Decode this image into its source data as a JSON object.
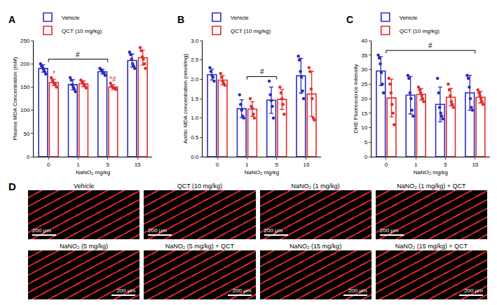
{
  "chart_data": [
    {
      "type": "bar",
      "panel": "A",
      "x_label": "NaNO₂ mg/kg",
      "y_label": "Plasma MDA Concentration (mM)",
      "categories": [
        "0",
        "1",
        "5",
        "15"
      ],
      "series": [
        {
          "name": "Vehicle",
          "color": "#2b2bbf",
          "values": [
            190,
            155,
            183,
            207
          ],
          "errors": [
            8,
            11,
            5,
            14
          ],
          "points": [
            [
              200,
              195,
              192,
              188,
              183,
              178
            ],
            [
              170,
              165,
              155,
              150,
              145,
              140
            ],
            [
              190,
              188,
              185,
              182,
              180,
              175
            ],
            [
              225,
              220,
              210,
              200,
              195,
              190
            ]
          ]
        },
        {
          "name": "QCT (10 mg/kg)",
          "color": "#e32b2b",
          "values": [
            160,
            157,
            150,
            213
          ],
          "errors": [
            7,
            6,
            5,
            16
          ],
          "points": [
            [
              170,
              165,
              160,
              158,
              155,
              150
            ],
            [
              165,
              162,
              158,
              155,
              152,
              148
            ],
            [
              158,
              152,
              150,
              148,
              147,
              145
            ],
            [
              235,
              228,
              215,
              210,
              200,
              190
            ]
          ]
        }
      ],
      "ylim": [
        0,
        250
      ],
      "yticks": [
        0,
        50,
        100,
        150,
        200,
        250
      ],
      "grid": false,
      "legend": "top left",
      "annotations": [
        {
          "text": "*",
          "category": "0",
          "series": "QCT (10 mg/kg)"
        },
        {
          "text": "*#",
          "category": "5",
          "series": "QCT (10 mg/kg)"
        }
      ],
      "brackets": [
        {
          "text": "#",
          "from": "0",
          "to": "5"
        }
      ]
    },
    {
      "type": "bar",
      "panel": "B",
      "x_label": "NaNO₂ mg/kg",
      "y_label": "Aortic MDA concentration (nmol/mg)",
      "categories": [
        "0",
        "1",
        "5",
        "15"
      ],
      "series": [
        {
          "name": "Vehicle",
          "color": "#2b2bbf",
          "values": [
            2.12,
            1.24,
            1.46,
            2.09
          ],
          "errors": [
            0.14,
            0.23,
            0.34,
            0.45
          ],
          "points": [
            [
              2.3,
              2.2,
              2.1,
              2.05,
              1.95
            ],
            [
              1.6,
              1.35,
              1.2,
              1.05,
              1.0
            ],
            [
              1.95,
              1.6,
              1.45,
              1.3,
              1.0
            ],
            [
              2.6,
              2.5,
              2.2,
              2.05,
              1.7,
              1.5
            ]
          ]
        },
        {
          "name": "QCT (10 mg/kg)",
          "color": "#e32b2b",
          "values": [
            1.98,
            1.23,
            1.48,
            1.62
          ],
          "errors": [
            0.12,
            0.19,
            0.26,
            0.58
          ],
          "points": [
            [
              2.15,
              2.05,
              1.95,
              1.9,
              1.85
            ],
            [
              1.5,
              1.3,
              1.25,
              1.1,
              1.0
            ],
            [
              1.8,
              1.65,
              1.5,
              1.35,
              1.1
            ],
            [
              2.3,
              2.2,
              1.75,
              1.5,
              1.0,
              0.95
            ]
          ]
        }
      ],
      "ylim": [
        0,
        3
      ],
      "yticks": [
        {
          "value": 0,
          "label": "0.0"
        },
        0.5,
        {
          "value": 1,
          "label": "1.0"
        },
        1.5,
        {
          "value": 2,
          "label": "2.0"
        },
        2.5,
        {
          "value": 3,
          "label": "3.0"
        }
      ],
      "grid": false,
      "legend": "top left",
      "annotations": [],
      "brackets": [
        {
          "text": "#",
          "from": "1",
          "to": "5"
        }
      ]
    },
    {
      "type": "bar",
      "panel": "C",
      "x_label": "NaNO₂ mg/kg",
      "y_label": "DHE Fluorescence Intensity",
      "categories": [
        "0",
        "1",
        "5",
        "15"
      ],
      "series": [
        {
          "name": "Vehicle",
          "color": "#2b2bbf",
          "values": [
            29.5,
            21.2,
            18,
            22
          ],
          "errors": [
            5,
            6.5,
            6,
            6
          ],
          "points": [
            [
              35,
              34,
              32,
              29,
              25,
              22
            ],
            [
              28,
              27,
              22,
              20,
              16,
              14
            ],
            [
              27,
              22,
              17,
              15,
              14,
              13
            ],
            [
              28,
              27,
              24,
              20,
              17,
              16
            ]
          ]
        },
        {
          "name": "QCT (10 mg/kg)",
          "color": "#e32b2b",
          "values": [
            20.2,
            21.5,
            20.5,
            20.5
          ],
          "errors": [
            6.5,
            2,
            3,
            2
          ],
          "points": [
            [
              27,
              25,
              22,
              18,
              15,
              11
            ],
            [
              24,
              23,
              22,
              21,
              20,
              19
            ],
            [
              25,
              23,
              21,
              19,
              18,
              17
            ],
            [
              23,
              22,
              21,
              20,
              19,
              18
            ]
          ]
        }
      ],
      "ylim": [
        0,
        40
      ],
      "yticks": [
        0,
        5,
        10,
        15,
        20,
        25,
        30,
        35,
        40
      ],
      "grid": false,
      "legend": "top left",
      "annotations": [],
      "brackets": [
        {
          "text": "#",
          "from": "0",
          "to": "15"
        }
      ]
    }
  ],
  "panel_d": {
    "label": "D",
    "images": [
      {
        "title": "Vehicle",
        "scale_bar": "200 µm"
      },
      {
        "title": "QCT (10 mg/kg)",
        "scale_bar": "200 µm"
      },
      {
        "title": "NaNO₂ (1 mg/kg)",
        "scale_bar": "200 µm"
      },
      {
        "title": "NaNO₂ (1 mg/kg) + QCT",
        "scale_bar": "200 µm"
      },
      {
        "title": "NaNO₂ (5 mg/kg)",
        "scale_bar": "200 µm"
      },
      {
        "title": "NaNO₂ (5 mg/kg) + QCT",
        "scale_bar": "200 µm"
      },
      {
        "title": "NaNO₂ (15 mg/kg)",
        "scale_bar": "200 µm"
      },
      {
        "title": "NaNO₂ (15 mg/kg) + QCT",
        "scale_bar": "200 µm"
      }
    ]
  }
}
